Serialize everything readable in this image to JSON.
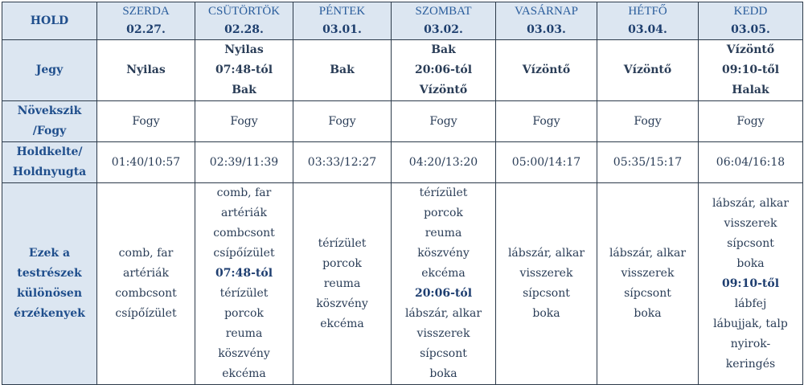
{
  "corner_label": "HOLD",
  "row_labels": {
    "jegy": "Jegy",
    "novekszik": [
      "Növekszik",
      "/Fogy"
    ],
    "holdkelte": [
      "Holdkelte/",
      "Holdnyugta"
    ],
    "testreszek": [
      "Ezek a",
      "testrészek",
      "különösen",
      "érzékenyek"
    ]
  },
  "days": [
    {
      "day": "SZERDA",
      "date": "02.27.",
      "sign": [
        "Nyilas"
      ],
      "phase": "Fogy",
      "rise_set": "01:40/10:57",
      "body": [
        {
          "t": "comb, far"
        },
        {
          "t": "artériák"
        },
        {
          "t": "combcsont"
        },
        {
          "t": "csípőízület"
        }
      ]
    },
    {
      "day": "CSÜTÖRTÖK",
      "date": "02.28.",
      "sign": [
        "Nyilas",
        "07:48-tól",
        "Bak"
      ],
      "phase": "Fogy",
      "rise_set": "02:39/11:39",
      "body": [
        {
          "t": "comb, far"
        },
        {
          "t": "artériák"
        },
        {
          "t": "combcsont"
        },
        {
          "t": "csípőízület"
        },
        {
          "t": "07:48-tól",
          "b": true
        },
        {
          "t": "térízület"
        },
        {
          "t": "porcok"
        },
        {
          "t": "reuma"
        },
        {
          "t": "köszvény"
        },
        {
          "t": "ekcéma"
        }
      ]
    },
    {
      "day": "PÉNTEK",
      "date": "03.01.",
      "sign": [
        "Bak"
      ],
      "phase": "Fogy",
      "rise_set": "03:33/12:27",
      "body": [
        {
          "t": "térízület"
        },
        {
          "t": "porcok"
        },
        {
          "t": "reuma"
        },
        {
          "t": "köszvény"
        },
        {
          "t": "ekcéma"
        }
      ]
    },
    {
      "day": "SZOMBAT",
      "date": "03.02.",
      "sign": [
        "Bak",
        "20:06-tól",
        "Vízöntő"
      ],
      "phase": "Fogy",
      "rise_set": "04:20/13:20",
      "body": [
        {
          "t": "térízület"
        },
        {
          "t": "porcok"
        },
        {
          "t": "reuma"
        },
        {
          "t": "köszvény"
        },
        {
          "t": "ekcéma"
        },
        {
          "t": "20:06-tól",
          "b": true
        },
        {
          "t": "lábszár, alkar"
        },
        {
          "t": "visszerek"
        },
        {
          "t": "sípcsont"
        },
        {
          "t": "boka"
        }
      ]
    },
    {
      "day": "VASÁRNAP",
      "date": "03.03.",
      "sign": [
        "Vízöntő"
      ],
      "phase": "Fogy",
      "rise_set": "05:00/14:17",
      "body": [
        {
          "t": "lábszár, alkar"
        },
        {
          "t": "visszerek"
        },
        {
          "t": "sípcsont"
        },
        {
          "t": "boka"
        }
      ]
    },
    {
      "day": "HÉTFŐ",
      "date": "03.04.",
      "sign": [
        "Vízöntő"
      ],
      "phase": "Fogy",
      "rise_set": "05:35/15:17",
      "body": [
        {
          "t": "lábszár, alkar"
        },
        {
          "t": "visszerek"
        },
        {
          "t": "sípcsont"
        },
        {
          "t": "boka"
        }
      ]
    },
    {
      "day": "KEDD",
      "date": "03.05.",
      "sign": [
        "Vízöntő",
        "09:10-től",
        "Halak"
      ],
      "phase": "Fogy",
      "rise_set": "06:04/16:18",
      "body": [
        {
          "t": "lábszár, alkar"
        },
        {
          "t": "visszerek"
        },
        {
          "t": "sípcsont"
        },
        {
          "t": "boka"
        },
        {
          "t": "09:10-től",
          "b": true
        },
        {
          "t": "lábfej"
        },
        {
          "t": "lábujjak, talp"
        },
        {
          "t": "nyirok-"
        },
        {
          "t": "keringés"
        }
      ]
    }
  ]
}
